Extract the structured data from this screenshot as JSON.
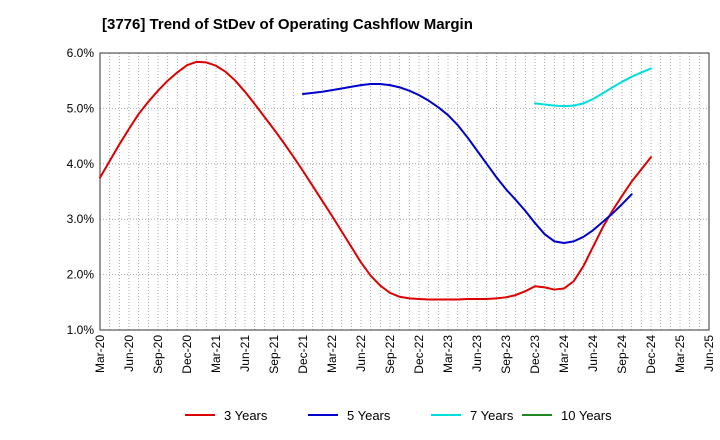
{
  "chart_data": {
    "type": "line",
    "title": "[3776]  Trend of StDev of Operating Cashflow Margin",
    "xlabel": "",
    "ylabel": "",
    "x_ticks": [
      "Mar-20",
      "Jun-20",
      "Sep-20",
      "Dec-20",
      "Mar-21",
      "Jun-21",
      "Sep-21",
      "Dec-21",
      "Mar-22",
      "Jun-22",
      "Sep-22",
      "Dec-22",
      "Mar-23",
      "Jun-23",
      "Sep-23",
      "Dec-23",
      "Mar-24",
      "Jun-24",
      "Sep-24",
      "Dec-24",
      "Mar-25",
      "Jun-25"
    ],
    "y_ticks": [
      "1.0%",
      "2.0%",
      "3.0%",
      "4.0%",
      "5.0%",
      "6.0%"
    ],
    "ylim": [
      1.0,
      6.0
    ],
    "grid": true,
    "legend_position": "bottom",
    "series": [
      {
        "name": "3 Years",
        "color": "#dd0000",
        "points": [
          [
            "Mar-20",
            3.75
          ],
          [
            "Apr-20",
            4.05
          ],
          [
            "May-20",
            4.35
          ],
          [
            "Jun-20",
            4.63
          ],
          [
            "Jul-20",
            4.9
          ],
          [
            "Aug-20",
            5.12
          ],
          [
            "Sep-20",
            5.32
          ],
          [
            "Oct-20",
            5.5
          ],
          [
            "Nov-20",
            5.65
          ],
          [
            "Dec-20",
            5.78
          ],
          [
            "Jan-21",
            5.84
          ],
          [
            "Feb-21",
            5.83
          ],
          [
            "Mar-21",
            5.77
          ],
          [
            "Apr-21",
            5.66
          ],
          [
            "May-21",
            5.5
          ],
          [
            "Jun-21",
            5.3
          ],
          [
            "Jul-21",
            5.08
          ],
          [
            "Aug-21",
            4.85
          ],
          [
            "Sep-21",
            4.62
          ],
          [
            "Oct-21",
            4.38
          ],
          [
            "Nov-21",
            4.13
          ],
          [
            "Dec-21",
            3.87
          ],
          [
            "Jan-22",
            3.6
          ],
          [
            "Feb-22",
            3.33
          ],
          [
            "Mar-22",
            3.06
          ],
          [
            "Apr-22",
            2.78
          ],
          [
            "May-22",
            2.5
          ],
          [
            "Jun-22",
            2.22
          ],
          [
            "Jul-22",
            1.98
          ],
          [
            "Aug-22",
            1.8
          ],
          [
            "Sep-22",
            1.67
          ],
          [
            "Oct-22",
            1.6
          ],
          [
            "Nov-22",
            1.57
          ],
          [
            "Dec-22",
            1.56
          ],
          [
            "Jan-23",
            1.55
          ],
          [
            "Feb-23",
            1.55
          ],
          [
            "Mar-23",
            1.55
          ],
          [
            "Apr-23",
            1.55
          ],
          [
            "May-23",
            1.56
          ],
          [
            "Jun-23",
            1.56
          ],
          [
            "Jul-23",
            1.56
          ],
          [
            "Aug-23",
            1.57
          ],
          [
            "Sep-23",
            1.59
          ],
          [
            "Oct-23",
            1.63
          ],
          [
            "Nov-23",
            1.7
          ],
          [
            "Dec-23",
            1.79
          ],
          [
            "Jan-24",
            1.77
          ],
          [
            "Feb-24",
            1.73
          ],
          [
            "Mar-24",
            1.75
          ],
          [
            "Apr-24",
            1.88
          ],
          [
            "May-24",
            2.15
          ],
          [
            "Jun-24",
            2.5
          ],
          [
            "Jul-24",
            2.85
          ],
          [
            "Aug-24",
            3.15
          ],
          [
            "Sep-24",
            3.42
          ],
          [
            "Oct-24",
            3.68
          ],
          [
            "Nov-24",
            3.9
          ],
          [
            "Dec-24",
            4.12
          ]
        ]
      },
      {
        "name": "5 Years",
        "color": "#0000cc",
        "points": [
          [
            "Dec-21",
            5.26
          ],
          [
            "Jan-22",
            5.28
          ],
          [
            "Feb-22",
            5.3
          ],
          [
            "Mar-22",
            5.33
          ],
          [
            "Apr-22",
            5.36
          ],
          [
            "May-22",
            5.39
          ],
          [
            "Jun-22",
            5.42
          ],
          [
            "Jul-22",
            5.44
          ],
          [
            "Aug-22",
            5.44
          ],
          [
            "Sep-22",
            5.42
          ],
          [
            "Oct-22",
            5.38
          ],
          [
            "Nov-22",
            5.32
          ],
          [
            "Dec-22",
            5.24
          ],
          [
            "Jan-23",
            5.14
          ],
          [
            "Feb-23",
            5.02
          ],
          [
            "Mar-23",
            4.88
          ],
          [
            "Apr-23",
            4.7
          ],
          [
            "May-23",
            4.48
          ],
          [
            "Jun-23",
            4.24
          ],
          [
            "Jul-23",
            4.0
          ],
          [
            "Aug-23",
            3.76
          ],
          [
            "Sep-23",
            3.54
          ],
          [
            "Oct-23",
            3.35
          ],
          [
            "Nov-23",
            3.15
          ],
          [
            "Dec-23",
            2.93
          ],
          [
            "Jan-24",
            2.73
          ],
          [
            "Feb-24",
            2.6
          ],
          [
            "Mar-24",
            2.57
          ],
          [
            "Apr-24",
            2.6
          ],
          [
            "May-24",
            2.68
          ],
          [
            "Jun-24",
            2.8
          ],
          [
            "Jul-24",
            2.95
          ],
          [
            "Aug-24",
            3.1
          ],
          [
            "Sep-24",
            3.27
          ],
          [
            "Oct-24",
            3.45
          ]
        ]
      },
      {
        "name": "7 Years",
        "color": "#00dddd",
        "points": [
          [
            "Dec-23",
            5.09
          ],
          [
            "Jan-24",
            5.07
          ],
          [
            "Feb-24",
            5.05
          ],
          [
            "Mar-24",
            5.04
          ],
          [
            "Apr-24",
            5.05
          ],
          [
            "May-24",
            5.09
          ],
          [
            "Jun-24",
            5.17
          ],
          [
            "Jul-24",
            5.27
          ],
          [
            "Aug-24",
            5.38
          ],
          [
            "Sep-24",
            5.48
          ],
          [
            "Oct-24",
            5.57
          ],
          [
            "Nov-24",
            5.65
          ],
          [
            "Dec-24",
            5.72
          ]
        ]
      },
      {
        "name": "10 Years",
        "color": "#228822",
        "points": []
      }
    ]
  }
}
